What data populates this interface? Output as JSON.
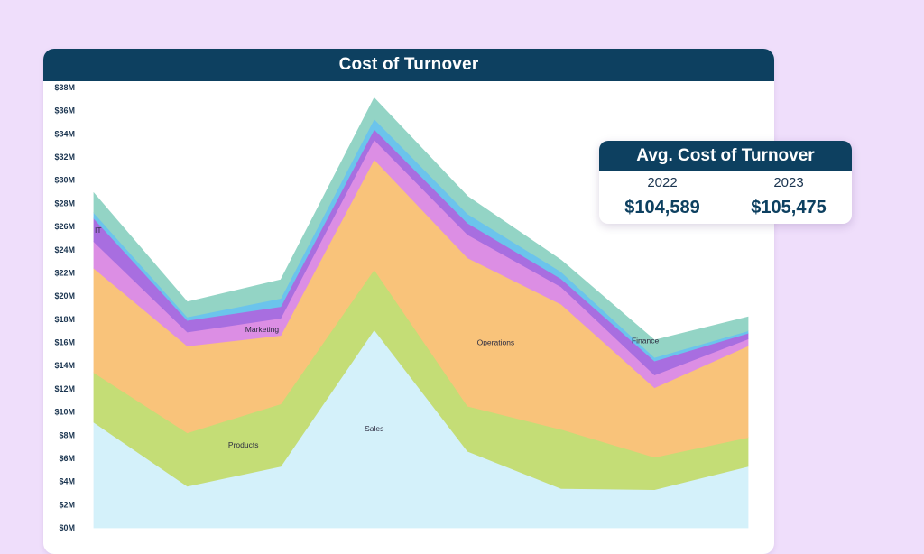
{
  "panel": {
    "title": "Cost of Turnover"
  },
  "kpi_card": {
    "title": "Avg. Cost of Turnover",
    "items": [
      {
        "year": "2022",
        "value": "$104,589"
      },
      {
        "year": "2023",
        "value": "$105,475"
      }
    ]
  },
  "background_color": "#efdefb",
  "header_color": "#0d4060",
  "chart_data": {
    "type": "area",
    "stacked": true,
    "title": "Cost of Turnover",
    "x": [
      1,
      2,
      3,
      4,
      5,
      6,
      7,
      8
    ],
    "xlabel": "",
    "ylabel": "",
    "ylim": [
      0,
      38
    ],
    "yticks": [
      0,
      2,
      4,
      6,
      8,
      10,
      12,
      14,
      16,
      18,
      20,
      22,
      24,
      26,
      28,
      30,
      32,
      34,
      36,
      38
    ],
    "ytick_labels": [
      "$0M",
      "$2M",
      "$4M",
      "$6M",
      "$8M",
      "$10M",
      "$12M",
      "$14M",
      "$16M",
      "$18M",
      "$20M",
      "$22M",
      "$24M",
      "$26M",
      "$28M",
      "$30M",
      "$32M",
      "$34M",
      "$36M",
      "$38M"
    ],
    "grid": false,
    "legend": "inline labels",
    "series": [
      {
        "name": "Sales",
        "color": "#d4f1fa",
        "values": [
          9.1,
          3.6,
          5.3,
          17.1,
          6.6,
          3.4,
          3.3,
          5.3
        ]
      },
      {
        "name": "Products",
        "color": "#c4dd76",
        "values": [
          4.3,
          4.6,
          5.4,
          5.2,
          3.9,
          5.1,
          2.8,
          2.5
        ]
      },
      {
        "name": "Operations",
        "color": "#f9c37a",
        "values": [
          9.0,
          7.5,
          5.9,
          9.5,
          12.8,
          10.8,
          6.0,
          7.9
        ]
      },
      {
        "name": "",
        "color": "#dc8ee4",
        "values": [
          2.3,
          1.2,
          1.5,
          1.7,
          2.0,
          1.5,
          1.1,
          0.6
        ]
      },
      {
        "name": "IT",
        "color": "#a86ee0",
        "values": [
          2.0,
          1.0,
          1.0,
          0.9,
          1.0,
          0.7,
          1.2,
          0.5
        ]
      },
      {
        "name": "",
        "color": "#6bc4ec",
        "values": [
          0.5,
          0.3,
          0.7,
          0.9,
          0.8,
          0.6,
          0.3,
          0.2
        ]
      },
      {
        "name": "Finance",
        "color": "#93d4c5",
        "values": [
          1.7,
          1.3,
          1.6,
          1.8,
          1.5,
          1.0,
          1.5,
          1.2
        ]
      }
    ],
    "label_list": [
      {
        "text": "Sales",
        "series": 0,
        "xi": 3.0
      },
      {
        "text": "Products",
        "series": 1,
        "xi": 1.6
      },
      {
        "text": "Operations",
        "series": 2,
        "xi": 4.3
      },
      {
        "text": "Marketing",
        "series": 3,
        "xi": 1.8
      },
      {
        "text": "IT",
        "series": 4,
        "xi": 0.0
      },
      {
        "text": "Finance",
        "series": 6,
        "xi": 5.9
      }
    ]
  }
}
